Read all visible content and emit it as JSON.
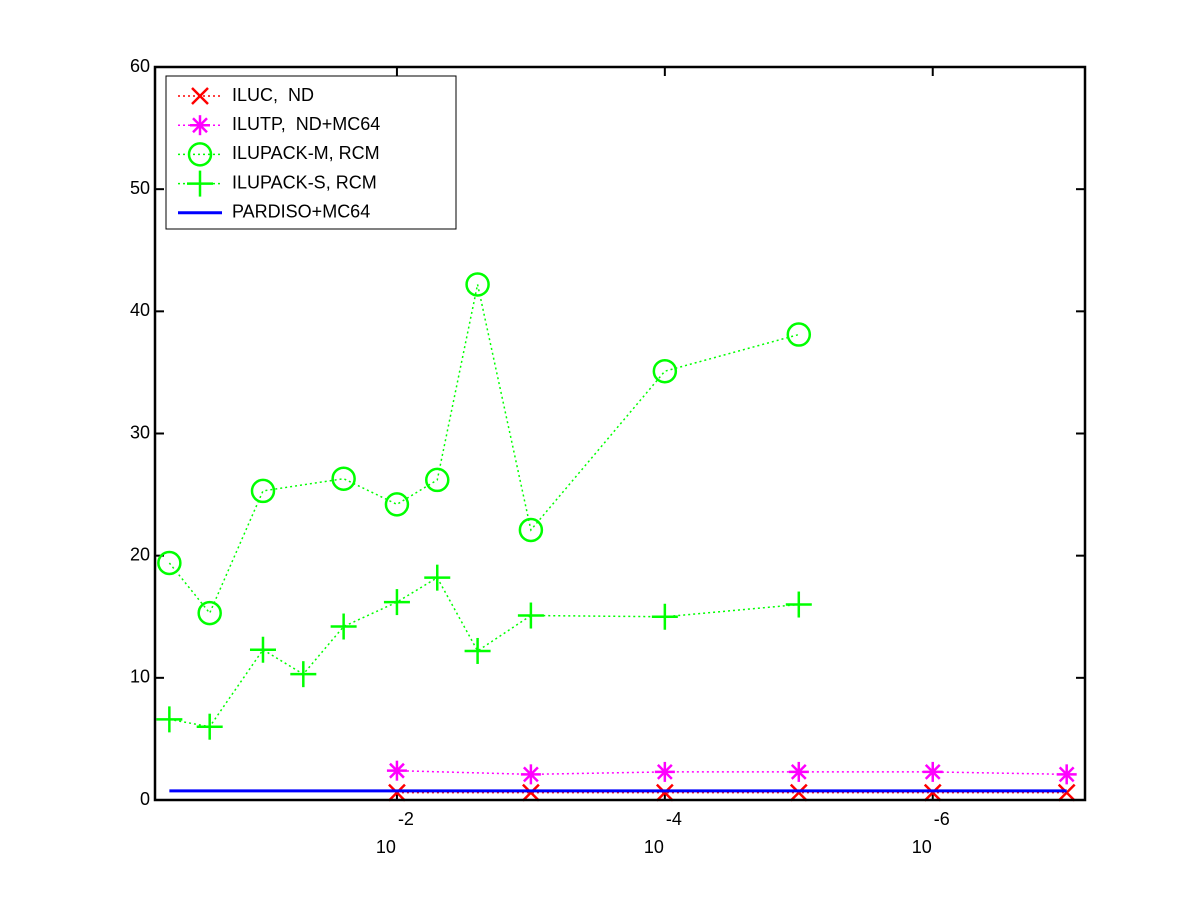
{
  "chart_data": {
    "type": "line",
    "xscale": "log",
    "xlim": [
      0.64,
      7.3e-08
    ],
    "xticks": [
      {
        "value": 0.01,
        "label": "10",
        "exponent": "-2"
      },
      {
        "value": 0.0001,
        "label": "10",
        "exponent": "-4"
      },
      {
        "value": 1e-06,
        "label": "10",
        "exponent": "-6"
      }
    ],
    "ylim": [
      0,
      60
    ],
    "yticks": [
      0,
      10,
      20,
      30,
      40,
      50,
      60
    ],
    "legend": "upper left",
    "series": [
      {
        "name": "ILUC,  ND",
        "color": "#ff0000",
        "marker": "x",
        "linestyle": "dotted",
        "x": [
          0.01,
          0.001,
          0.0001,
          1e-05,
          1e-06,
          1e-07
        ],
        "values": [
          0.6,
          0.6,
          0.6,
          0.6,
          0.6,
          0.6
        ]
      },
      {
        "name": "ILUTP,  ND+MC64",
        "color": "#ff00ff",
        "marker": "asterisk",
        "linestyle": "dotted",
        "x": [
          0.01,
          0.001,
          0.0001,
          1e-05,
          1e-06,
          1e-07
        ],
        "values": [
          2.4,
          2.1,
          2.3,
          2.3,
          2.3,
          2.1
        ]
      },
      {
        "name": "ILUPACK-M, RCM",
        "color": "#00ff00",
        "marker": "circle",
        "linestyle": "dotted",
        "x": [
          0.5,
          0.25,
          0.1,
          0.025,
          0.01,
          0.005,
          0.0025,
          0.001,
          0.0001,
          1e-05
        ],
        "values": [
          19.4,
          15.3,
          25.3,
          26.3,
          24.2,
          26.2,
          42.2,
          22.1,
          35.1,
          38.1
        ]
      },
      {
        "name": "ILUPACK-S, RCM",
        "color": "#00ff00",
        "marker": "plus",
        "linestyle": "dotted",
        "x": [
          0.5,
          0.25,
          0.1,
          0.05,
          0.025,
          0.01,
          0.005,
          0.0025,
          0.001,
          0.0001,
          1e-05
        ],
        "values": [
          6.6,
          6.0,
          12.3,
          10.3,
          14.2,
          16.2,
          18.2,
          12.2,
          15.1,
          15.0,
          16.0
        ]
      },
      {
        "name": "PARDISO+MC64",
        "color": "#0000ff",
        "marker": "none",
        "linestyle": "solid",
        "x": [
          0.5,
          1e-07
        ],
        "values": [
          0.75,
          0.75
        ]
      }
    ]
  }
}
